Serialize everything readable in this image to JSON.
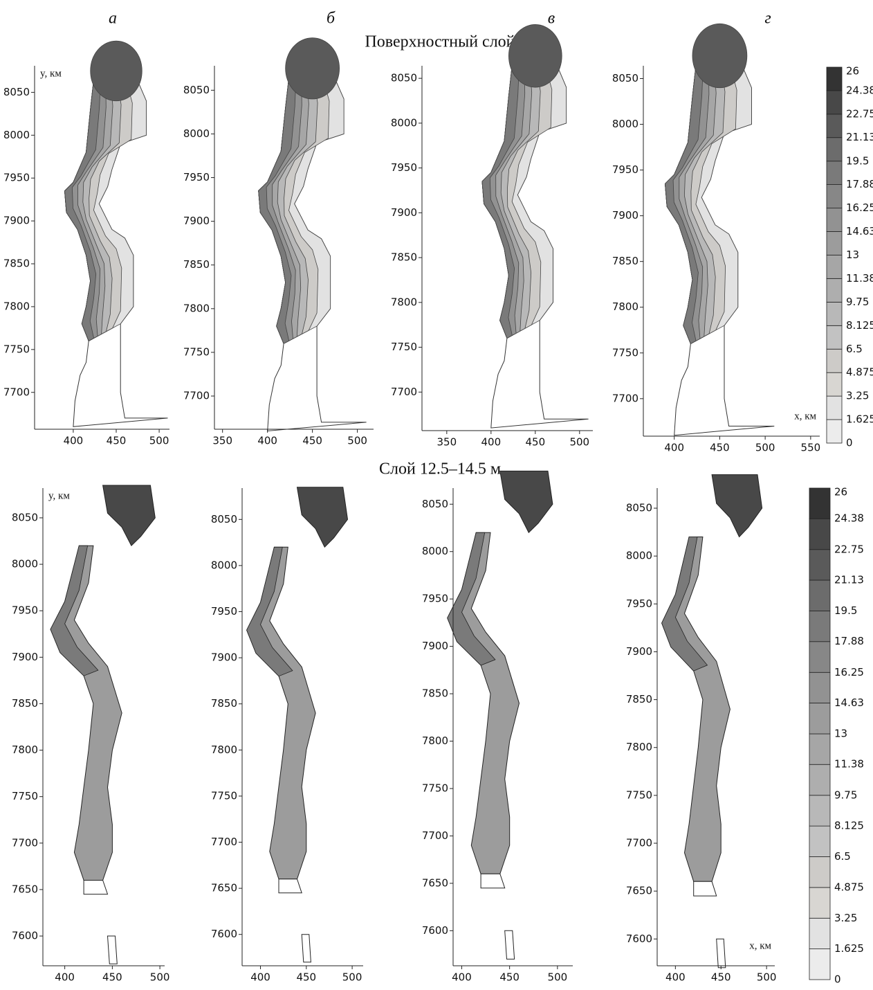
{
  "columns": [
    "а",
    "б",
    "в",
    "г"
  ],
  "row_titles": [
    "Поверхностный слой",
    "Слой 12.5–14.5 м"
  ],
  "colorbar": {
    "levels": [
      0,
      1.625,
      3.25,
      4.875,
      6.5,
      8.125,
      9.75,
      11.38,
      13,
      14.63,
      16.25,
      17.88,
      19.5,
      21.13,
      22.75,
      24.38,
      26
    ],
    "colors": [
      "#ffffff",
      "#ececec",
      "#e2e2e2",
      "#d8d6d2",
      "#cdcbc8",
      "#c2c2c2",
      "#b8b8b8",
      "#aeaeae",
      "#a6a6a6",
      "#9c9c9c",
      "#929292",
      "#878787",
      "#7a7a7a",
      "#6c6c6c",
      "#5a5a5a",
      "#484848",
      "#333333"
    ]
  },
  "chart_data": [
    {
      "type": "contour",
      "row": 0,
      "ylabel": "y, км",
      "xlim": [
        355,
        512
      ],
      "ylim": [
        7657,
        8081
      ],
      "xticks": [
        400,
        450,
        500
      ],
      "yticks": [
        7700,
        7750,
        7800,
        7850,
        7900,
        7950,
        8000,
        8050
      ]
    },
    {
      "type": "contour",
      "row": 0,
      "xlim": [
        341,
        518
      ],
      "ylim": [
        7662,
        8078
      ],
      "xticks": [
        350,
        400,
        450,
        500
      ],
      "yticks": [
        7700,
        7750,
        7800,
        7850,
        7900,
        7950,
        8000,
        8050
      ]
    },
    {
      "type": "contour",
      "row": 0,
      "xlim": [
        322,
        515
      ],
      "ylim": [
        7657,
        8064
      ],
      "xticks": [
        350,
        400,
        450,
        500
      ],
      "yticks": [
        7700,
        7750,
        7800,
        7850,
        7900,
        7950,
        8000,
        8050
      ]
    },
    {
      "type": "contour",
      "row": 0,
      "xlabel": "x, км",
      "xlim": [
        366,
        560
      ],
      "ylim": [
        7659,
        8064
      ],
      "xticks": [
        400,
        450,
        500,
        550
      ],
      "yticks": [
        7700,
        7750,
        7800,
        7850,
        7900,
        7950,
        8000,
        8050
      ]
    },
    {
      "type": "contour",
      "row": 1,
      "ylabel": "y, км",
      "xlim": [
        377,
        505
      ],
      "ylim": [
        7568,
        8082
      ],
      "xticks": [
        400,
        450,
        500
      ],
      "yticks": [
        7600,
        7650,
        7700,
        7750,
        7800,
        7850,
        7900,
        7950,
        8000,
        8050
      ]
    },
    {
      "type": "contour",
      "row": 1,
      "xlim": [
        380,
        512
      ],
      "ylim": [
        7566,
        8084
      ],
      "xticks": [
        400,
        450,
        500
      ],
      "yticks": [
        7600,
        7650,
        7700,
        7750,
        7800,
        7850,
        7900,
        7950,
        8000,
        8050
      ]
    },
    {
      "type": "contour",
      "row": 1,
      "xlim": [
        391,
        516
      ],
      "ylim": [
        7563,
        8067
      ],
      "xticks": [
        400,
        450,
        500
      ],
      "yticks": [
        7600,
        7650,
        7700,
        7750,
        7800,
        7850,
        7900,
        7950,
        8000,
        8050
      ]
    },
    {
      "type": "contour",
      "row": 1,
      "xlabel": "x, км",
      "xlim": [
        380,
        509
      ],
      "ylim": [
        7572,
        8071
      ],
      "xticks": [
        400,
        450,
        500
      ],
      "yticks": [
        7600,
        7650,
        7700,
        7750,
        7800,
        7850,
        7900,
        7950,
        8000,
        8050
      ]
    }
  ]
}
